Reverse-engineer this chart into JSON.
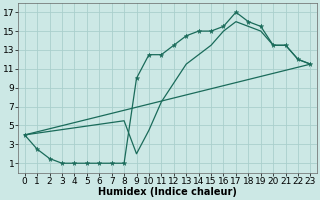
{
  "bg_color": "#cce8e5",
  "grid_color": "#aacfcc",
  "line_color": "#1a6b5a",
  "xlabel": "Humidex (Indice chaleur)",
  "xlim": [
    -0.5,
    23.5
  ],
  "ylim": [
    0.0,
    18.0
  ],
  "xticks": [
    0,
    1,
    2,
    3,
    4,
    5,
    6,
    7,
    8,
    9,
    10,
    11,
    12,
    13,
    14,
    15,
    16,
    17,
    18,
    19,
    20,
    21,
    22,
    23
  ],
  "yticks": [
    1,
    3,
    5,
    7,
    9,
    11,
    13,
    15,
    17
  ],
  "curve1_x": [
    0,
    1,
    2,
    3,
    4,
    5,
    6,
    7,
    8,
    9,
    10,
    11,
    12,
    13,
    14,
    15,
    16,
    17,
    18,
    19,
    20,
    21,
    22,
    23
  ],
  "curve1_y": [
    4,
    2.5,
    1.5,
    1.0,
    1.0,
    1.0,
    1.0,
    1.0,
    1.0,
    10.0,
    12.5,
    12.5,
    13.5,
    14.5,
    15.0,
    15.0,
    15.5,
    17.0,
    16.0,
    15.5,
    13.5,
    13.5,
    12.0,
    11.5
  ],
  "curve2_x": [
    0,
    23
  ],
  "curve2_y": [
    4,
    11.5
  ],
  "curve3_x": [
    0,
    8,
    9,
    10,
    11,
    12,
    13,
    14,
    15,
    16,
    17,
    18,
    19,
    20,
    21,
    22,
    23
  ],
  "curve3_y": [
    4,
    5.5,
    2.0,
    4.5,
    7.5,
    9.5,
    11.5,
    12.5,
    13.5,
    15.0,
    16.0,
    15.5,
    15.0,
    13.5,
    13.5,
    12.0,
    11.5
  ],
  "fontsize_label": 7,
  "fontsize_tick": 6.5
}
